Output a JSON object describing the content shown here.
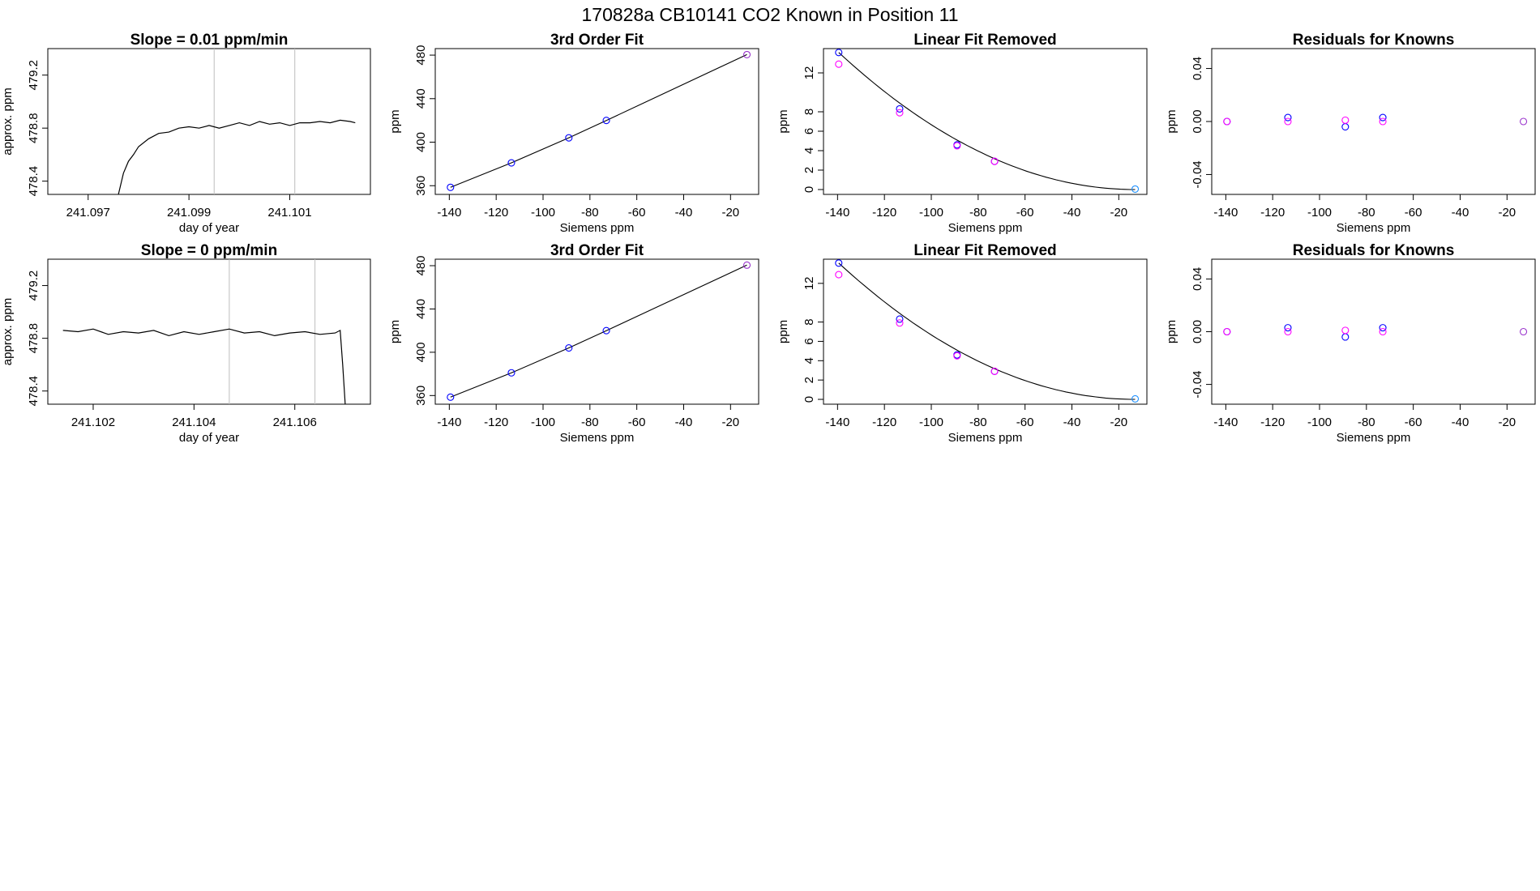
{
  "suptitle": "170828a      CB10141    CO2 Known in Position  11",
  "colors": {
    "axis": "#000000",
    "line": "#000000",
    "grid_vertical": "#bebebe",
    "points_blue": "#0000ff",
    "points_magenta": "#ff00ff",
    "points_lightblue": "#1e90ff",
    "points_violet": "#9932cc"
  },
  "chart_data": [
    {
      "type": "line",
      "title": "Slope =  0.01  ppm/min",
      "xlabel": "day of year",
      "ylabel": "approx. ppm",
      "xlim": [
        241.0962,
        241.1026
      ],
      "ylim": [
        478.3,
        479.4
      ],
      "xticks": [
        "241.097",
        "241.099",
        "241.101"
      ],
      "yticks": [
        "478.4",
        "478.8",
        "479.2"
      ],
      "vlines": [
        241.0995,
        241.1011
      ],
      "series": [
        {
          "x": [
            241.0976,
            241.0977,
            241.0978,
            241.0979,
            241.098,
            241.0982,
            241.0984,
            241.0986,
            241.0988,
            241.099,
            241.0992,
            241.0994,
            241.0996,
            241.0998,
            241.1,
            241.1002,
            241.1004,
            241.1006,
            241.1008,
            241.101,
            241.1012,
            241.1014,
            241.1016,
            241.1018,
            241.102,
            241.1022,
            241.1023
          ],
          "y": [
            478.3,
            478.46,
            478.55,
            478.6,
            478.66,
            478.72,
            478.76,
            478.77,
            478.8,
            478.81,
            478.8,
            478.82,
            478.8,
            478.82,
            478.84,
            478.82,
            478.85,
            478.83,
            478.84,
            478.82,
            478.84,
            478.84,
            478.85,
            478.84,
            478.86,
            478.85,
            478.84
          ]
        }
      ]
    },
    {
      "type": "scatter",
      "title": "3rd Order Fit",
      "xlabel": "Siemens ppm",
      "ylabel": "ppm",
      "xlim": [
        -146,
        -8
      ],
      "ylim": [
        352,
        486
      ],
      "xticks": [
        -140,
        -120,
        -100,
        -80,
        -60,
        -40,
        -20
      ],
      "yticks": [
        360,
        400,
        440,
        480
      ],
      "fit": {
        "x": [
          -139.5,
          -113.5,
          -89,
          -73,
          -13
        ],
        "y": [
          358.5,
          381,
          404,
          420,
          480.5
        ]
      },
      "points": [
        {
          "x": -139.5,
          "y": 358.5,
          "color": "blue"
        },
        {
          "x": -113.5,
          "y": 381,
          "color": "blue"
        },
        {
          "x": -89,
          "y": 404,
          "color": "blue"
        },
        {
          "x": -73,
          "y": 420,
          "color": "blue"
        },
        {
          "x": -13,
          "y": 480.5,
          "color": "violet"
        }
      ]
    },
    {
      "type": "scatter",
      "title": "Linear Fit Removed",
      "xlabel": "Siemens ppm",
      "ylabel": "ppm",
      "xlim": [
        -146,
        -8
      ],
      "ylim": [
        -0.5,
        14.5
      ],
      "xticks": [
        -140,
        -120,
        -100,
        -80,
        -60,
        -40,
        -20
      ],
      "yticks": [
        0,
        2,
        4,
        6,
        8,
        12
      ],
      "fit_curve": {
        "x0": -13,
        "x1": -139.5,
        "y1": 14.1,
        "power": 2
      },
      "points": [
        {
          "x": -139.5,
          "y": 14.1,
          "color": "blue"
        },
        {
          "x": -139.5,
          "y": 12.9,
          "color": "magenta"
        },
        {
          "x": -113.5,
          "y": 8.3,
          "color": "blue"
        },
        {
          "x": -113.5,
          "y": 7.9,
          "color": "magenta"
        },
        {
          "x": -89,
          "y": 4.6,
          "color": "blue"
        },
        {
          "x": -89,
          "y": 4.5,
          "color": "magenta"
        },
        {
          "x": -73,
          "y": 2.9,
          "color": "blue"
        },
        {
          "x": -73,
          "y": 2.9,
          "color": "magenta"
        },
        {
          "x": -13,
          "y": 0.05,
          "color": "lightblue"
        }
      ]
    },
    {
      "type": "scatter",
      "title": "Residuals for Knowns",
      "xlabel": "Siemens ppm",
      "ylabel": "ppm",
      "xlim": [
        -146,
        -8
      ],
      "ylim": [
        -0.055,
        0.055
      ],
      "xticks": [
        -140,
        -120,
        -100,
        -80,
        -60,
        -40,
        -20
      ],
      "yticks": [
        "-0.04",
        "0.00",
        "0.04"
      ],
      "yticks_values": [
        -0.04,
        0.0,
        0.04
      ],
      "points": [
        {
          "x": -139.5,
          "y": 0.0,
          "color": "blue"
        },
        {
          "x": -139.5,
          "y": 0.0,
          "color": "magenta"
        },
        {
          "x": -113.5,
          "y": 0.003,
          "color": "blue"
        },
        {
          "x": -113.5,
          "y": 0.0,
          "color": "magenta"
        },
        {
          "x": -89,
          "y": -0.004,
          "color": "blue"
        },
        {
          "x": -89,
          "y": 0.001,
          "color": "magenta"
        },
        {
          "x": -73,
          "y": 0.003,
          "color": "blue"
        },
        {
          "x": -73,
          "y": 0.0,
          "color": "magenta"
        },
        {
          "x": -13,
          "y": 0.0,
          "color": "violet"
        }
      ]
    },
    {
      "type": "line",
      "title": "Slope =  0  ppm/min",
      "xlabel": "day of year",
      "ylabel": "approx. ppm",
      "xlim": [
        241.1011,
        241.1075
      ],
      "ylim": [
        478.3,
        479.4
      ],
      "xticks": [
        "241.102",
        "241.104",
        "241.106"
      ],
      "yticks": [
        "478.4",
        "478.8",
        "479.2"
      ],
      "vlines": [
        241.1047,
        241.1064
      ],
      "series": [
        {
          "x": [
            241.1014,
            241.1017,
            241.102,
            241.1023,
            241.1026,
            241.1029,
            241.1032,
            241.1035,
            241.1038,
            241.1041,
            241.1044,
            241.1047,
            241.105,
            241.1053,
            241.1056,
            241.1059,
            241.1062,
            241.1065,
            241.1068,
            241.1069,
            241.10695,
            241.107
          ],
          "y": [
            478.86,
            478.85,
            478.87,
            478.83,
            478.85,
            478.84,
            478.86,
            478.82,
            478.85,
            478.83,
            478.85,
            478.87,
            478.84,
            478.85,
            478.82,
            478.84,
            478.85,
            478.83,
            478.84,
            478.86,
            478.6,
            478.3
          ]
        }
      ]
    },
    {
      "type": "scatter",
      "title": "3rd Order Fit",
      "xlabel": "Siemens ppm",
      "ylabel": "ppm",
      "xlim": [
        -146,
        -8
      ],
      "ylim": [
        352,
        486
      ],
      "xticks": [
        -140,
        -120,
        -100,
        -80,
        -60,
        -40,
        -20
      ],
      "yticks": [
        360,
        400,
        440,
        480
      ],
      "fit": {
        "x": [
          -139.5,
          -113.5,
          -89,
          -73,
          -13
        ],
        "y": [
          358.5,
          381,
          404,
          420,
          480.5
        ]
      },
      "points": [
        {
          "x": -139.5,
          "y": 358.5,
          "color": "blue"
        },
        {
          "x": -113.5,
          "y": 381,
          "color": "blue"
        },
        {
          "x": -89,
          "y": 404,
          "color": "blue"
        },
        {
          "x": -73,
          "y": 420,
          "color": "blue"
        },
        {
          "x": -13,
          "y": 480.5,
          "color": "violet"
        }
      ]
    },
    {
      "type": "scatter",
      "title": "Linear Fit Removed",
      "xlabel": "Siemens ppm",
      "ylabel": "ppm",
      "xlim": [
        -146,
        -8
      ],
      "ylim": [
        -0.5,
        14.5
      ],
      "xticks": [
        -140,
        -120,
        -100,
        -80,
        -60,
        -40,
        -20
      ],
      "yticks": [
        0,
        2,
        4,
        6,
        8,
        12
      ],
      "fit_curve": {
        "x0": -13,
        "x1": -139.5,
        "y1": 14.1,
        "power": 2
      },
      "points": [
        {
          "x": -139.5,
          "y": 14.1,
          "color": "blue"
        },
        {
          "x": -139.5,
          "y": 12.9,
          "color": "magenta"
        },
        {
          "x": -113.5,
          "y": 8.3,
          "color": "blue"
        },
        {
          "x": -113.5,
          "y": 7.9,
          "color": "magenta"
        },
        {
          "x": -89,
          "y": 4.6,
          "color": "blue"
        },
        {
          "x": -89,
          "y": 4.5,
          "color": "magenta"
        },
        {
          "x": -73,
          "y": 2.9,
          "color": "blue"
        },
        {
          "x": -73,
          "y": 2.9,
          "color": "magenta"
        },
        {
          "x": -13,
          "y": 0.05,
          "color": "lightblue"
        }
      ]
    },
    {
      "type": "scatter",
      "title": "Residuals for Knowns",
      "xlabel": "Siemens ppm",
      "ylabel": "ppm",
      "xlim": [
        -146,
        -8
      ],
      "ylim": [
        -0.055,
        0.055
      ],
      "xticks": [
        -140,
        -120,
        -100,
        -80,
        -60,
        -40,
        -20
      ],
      "yticks": [
        "-0.04",
        "0.00",
        "0.04"
      ],
      "yticks_values": [
        -0.04,
        0.0,
        0.04
      ],
      "points": [
        {
          "x": -139.5,
          "y": 0.0,
          "color": "blue"
        },
        {
          "x": -139.5,
          "y": 0.0,
          "color": "magenta"
        },
        {
          "x": -113.5,
          "y": 0.003,
          "color": "blue"
        },
        {
          "x": -113.5,
          "y": 0.0,
          "color": "magenta"
        },
        {
          "x": -89,
          "y": -0.004,
          "color": "blue"
        },
        {
          "x": -89,
          "y": 0.001,
          "color": "magenta"
        },
        {
          "x": -73,
          "y": 0.003,
          "color": "blue"
        },
        {
          "x": -73,
          "y": 0.0,
          "color": "magenta"
        },
        {
          "x": -13,
          "y": 0.0,
          "color": "violet"
        }
      ]
    }
  ]
}
